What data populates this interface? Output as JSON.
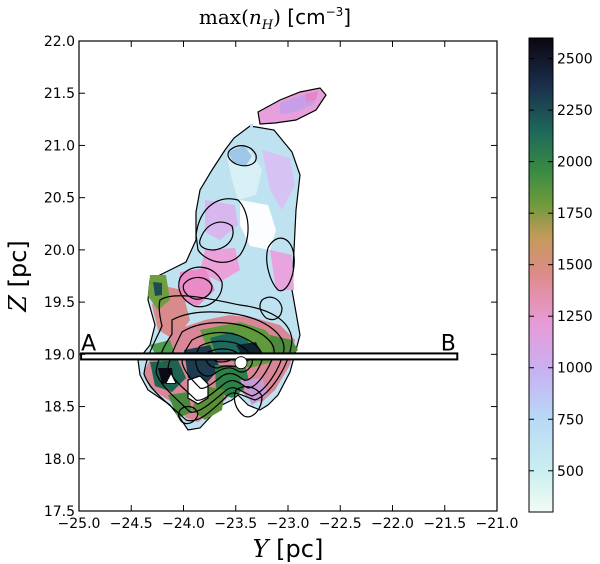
{
  "chart_data": {
    "type": "heatmap",
    "title": "max(n_H) [cm^-3]",
    "title_parts": {
      "func": "max(",
      "var": "n",
      "sub": "H",
      "close": ")",
      "unit": "[cm",
      "exp": "−3",
      "unit_close": "]"
    },
    "xlabel": {
      "var": "Y",
      "unit": "[pc]"
    },
    "ylabel": {
      "var": "Z",
      "unit": "[pc]"
    },
    "xlim": [
      -25.0,
      -21.0
    ],
    "ylim": [
      17.5,
      22.0
    ],
    "x_ticks": [
      -25.0,
      -24.5,
      -24.0,
      -23.5,
      -23.0,
      -22.5,
      -22.0,
      -21.5,
      -21.0
    ],
    "x_tick_labels": [
      "−25.0",
      "−24.5",
      "−24.0",
      "−23.5",
      "−23.0",
      "−22.5",
      "−22.0",
      "−21.5",
      "−21.0"
    ],
    "y_ticks": [
      17.5,
      18.0,
      18.5,
      19.0,
      19.5,
      20.0,
      20.5,
      21.0,
      21.5,
      22.0
    ],
    "y_tick_labels": [
      "17.5",
      "18.0",
      "18.5",
      "19.0",
      "19.5",
      "20.0",
      "20.5",
      "21.0",
      "21.5",
      "22.0"
    ],
    "colorbar": {
      "min": 300,
      "max": 2600,
      "ticks": [
        500,
        750,
        1000,
        1250,
        1500,
        1750,
        2000,
        2250,
        2500
      ],
      "tick_labels": [
        "500",
        "750",
        "1000",
        "1250",
        "1500",
        "1750",
        "2000",
        "2250",
        "2500"
      ],
      "colormap": "cubehelix-like (white → light blue → violet → pink → olive green → dark teal → black)"
    },
    "cut_line": {
      "start_label": "A",
      "end_label": "B",
      "y0": 18.98,
      "x0": -24.98,
      "x1": -21.38
    },
    "markers": [
      {
        "shape": "triangle",
        "x": -24.12,
        "y": 18.76,
        "color": "#ffffff"
      },
      {
        "shape": "circle",
        "x": -23.45,
        "y": 18.92,
        "color": "#ffffff"
      }
    ]
  }
}
